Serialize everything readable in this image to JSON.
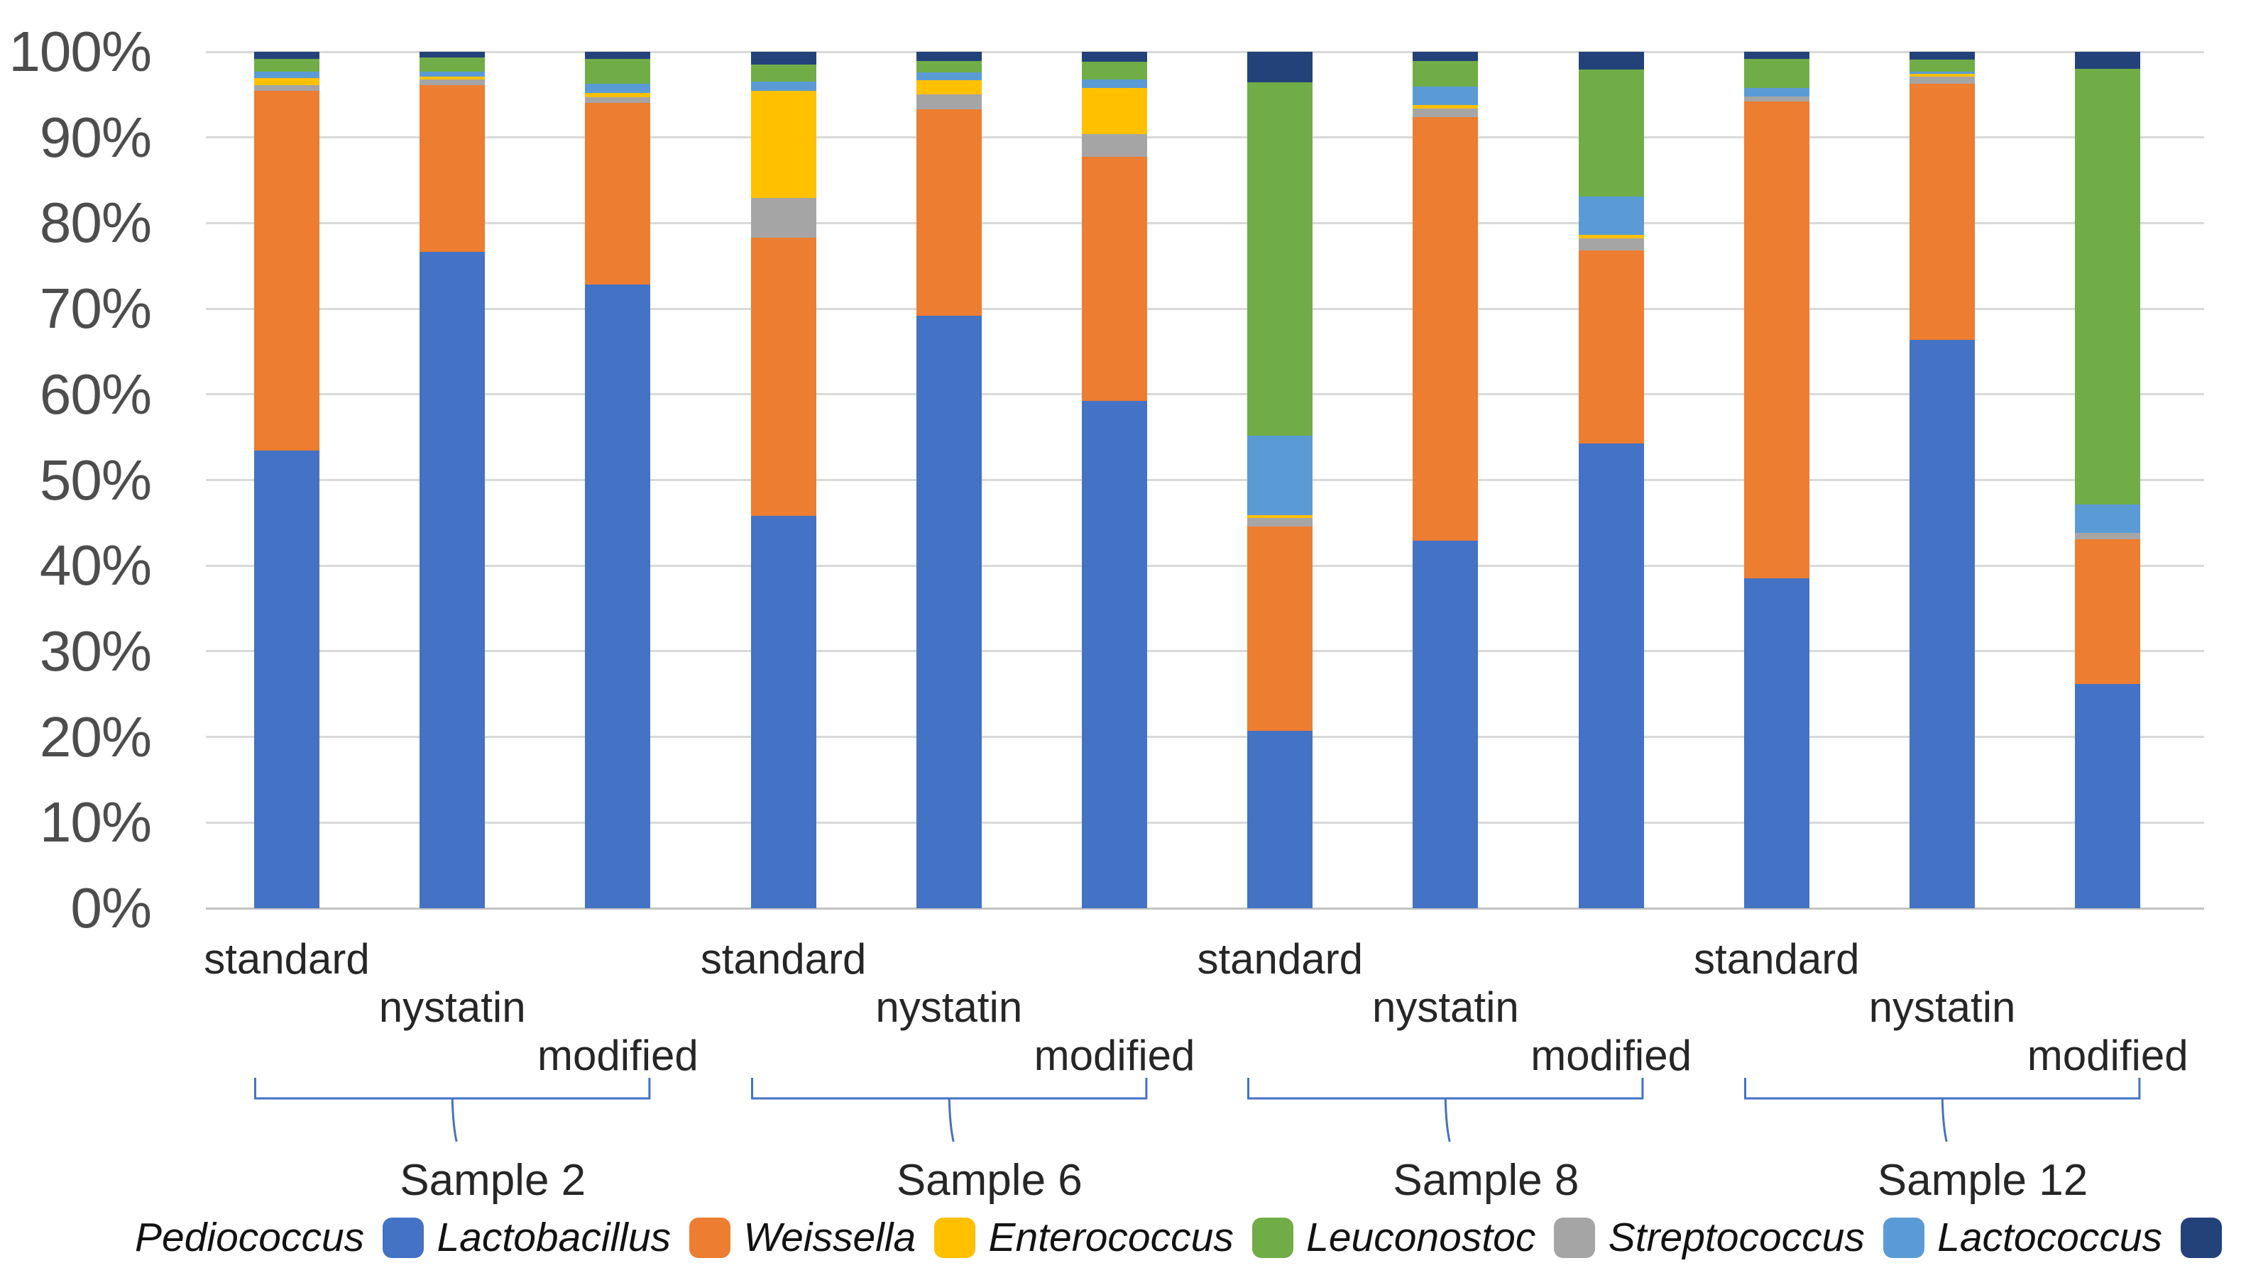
{
  "chart_data": {
    "type": "bar",
    "subtype": "stacked-100-percent",
    "title": "",
    "xlabel": "",
    "ylabel": "",
    "ylim": [
      0,
      100
    ],
    "grid": true,
    "y_axis_ticks": [
      "0%",
      "10%",
      "20%",
      "30%",
      "40%",
      "50%",
      "60%",
      "70%",
      "80%",
      "90%",
      "100%"
    ],
    "series_stack_order_bottom_to_top": [
      {
        "name": "Pediococcus",
        "color": "#4472C4"
      },
      {
        "name": "Lactobacillus",
        "color": "#ED7D31"
      },
      {
        "name": "Leuconostoc",
        "color": "#A5A5A5"
      },
      {
        "name": "Weissella",
        "color": "#FFC000"
      },
      {
        "name": "Streptococcus",
        "color": "#5B9BD5"
      },
      {
        "name": "Enterococcus",
        "color": "#70AD47"
      },
      {
        "name": "Lactococcus",
        "color": "#24427A"
      }
    ],
    "legend": {
      "position": "bottom",
      "items": [
        {
          "label": "Pediococcus",
          "color": "#4472C4"
        },
        {
          "label": "Lactobacillus",
          "color": "#ED7D31"
        },
        {
          "label": "Weissella",
          "color": "#FFC000"
        },
        {
          "label": "Enterococcus",
          "color": "#70AD47"
        },
        {
          "label": "Leuconostoc",
          "color": "#A5A5A5"
        },
        {
          "label": "Streptococcus",
          "color": "#5B9BD5"
        },
        {
          "label": "Lactococcus",
          "color": "#24427A"
        }
      ]
    },
    "groups": [
      {
        "label": "Sample 2",
        "bars": [
          {
            "condition": "standard",
            "values": {
              "Pediococcus": 53.4,
              "Lactobacillus": 42.0,
              "Leuconostoc": 0.7,
              "Weissella": 0.8,
              "Streptococcus": 0.8,
              "Enterococcus": 1.5,
              "Lactococcus": 0.8
            }
          },
          {
            "condition": "nystatin",
            "values": {
              "Pediococcus": 76.6,
              "Lactobacillus": 19.5,
              "Leuconostoc": 0.7,
              "Weissella": 0.3,
              "Streptococcus": 0.6,
              "Enterococcus": 1.6,
              "Lactococcus": 0.7
            }
          },
          {
            "condition": "modified",
            "values": {
              "Pediococcus": 72.8,
              "Lactobacillus": 21.2,
              "Leuconostoc": 0.7,
              "Weissella": 0.5,
              "Streptococcus": 1.1,
              "Enterococcus": 2.9,
              "Lactococcus": 0.8
            }
          }
        ]
      },
      {
        "label": "Sample 6",
        "bars": [
          {
            "condition": "standard",
            "values": {
              "Pediococcus": 45.8,
              "Lactobacillus": 32.5,
              "Leuconostoc": 4.6,
              "Weissella": 12.5,
              "Streptococcus": 1.1,
              "Enterococcus": 2.0,
              "Lactococcus": 1.5
            }
          },
          {
            "condition": "nystatin",
            "values": {
              "Pediococcus": 69.2,
              "Lactobacillus": 24.1,
              "Leuconostoc": 1.7,
              "Weissella": 1.7,
              "Streptococcus": 0.9,
              "Enterococcus": 1.3,
              "Lactococcus": 1.1
            }
          },
          {
            "condition": "modified",
            "values": {
              "Pediococcus": 59.2,
              "Lactobacillus": 28.5,
              "Leuconostoc": 2.7,
              "Weissella": 5.4,
              "Streptococcus": 1.0,
              "Enterococcus": 2.0,
              "Lactococcus": 1.2
            }
          }
        ]
      },
      {
        "label": "Sample 8",
        "bars": [
          {
            "condition": "standard",
            "values": {
              "Pediococcus": 20.7,
              "Lactobacillus": 23.9,
              "Leuconostoc": 1.0,
              "Weissella": 0.3,
              "Streptococcus": 9.3,
              "Enterococcus": 41.2,
              "Lactococcus": 3.6
            }
          },
          {
            "condition": "nystatin",
            "values": {
              "Pediococcus": 42.9,
              "Lactobacillus": 49.5,
              "Leuconostoc": 1.0,
              "Weissella": 0.4,
              "Streptococcus": 2.1,
              "Enterococcus": 3.0,
              "Lactococcus": 1.1
            }
          },
          {
            "condition": "modified",
            "values": {
              "Pediococcus": 54.3,
              "Lactobacillus": 22.5,
              "Leuconostoc": 1.4,
              "Weissella": 0.4,
              "Streptococcus": 4.5,
              "Enterococcus": 14.8,
              "Lactococcus": 2.1
            }
          }
        ]
      },
      {
        "label": "Sample 12",
        "bars": [
          {
            "condition": "standard",
            "values": {
              "Pediococcus": 38.5,
              "Lactobacillus": 55.7,
              "Leuconostoc": 0.6,
              "Weissella": 0.0,
              "Streptococcus": 1.0,
              "Enterococcus": 3.4,
              "Lactococcus": 0.8
            }
          },
          {
            "condition": "nystatin",
            "values": {
              "Pediococcus": 66.4,
              "Lactobacillus": 29.9,
              "Leuconostoc": 0.8,
              "Weissella": 0.3,
              "Streptococcus": 0.3,
              "Enterococcus": 1.4,
              "Lactococcus": 0.9
            }
          },
          {
            "condition": "modified",
            "values": {
              "Pediococcus": 26.2,
              "Lactobacillus": 16.9,
              "Leuconostoc": 0.7,
              "Weissella": 0.0,
              "Streptococcus": 3.3,
              "Enterococcus": 50.9,
              "Lactococcus": 2.0
            }
          }
        ]
      }
    ],
    "colors": {
      "gridline": "#D9D9D9",
      "axis_text": "#4D4D4D",
      "label_text": "#262626",
      "brace": "#4472C4"
    }
  }
}
